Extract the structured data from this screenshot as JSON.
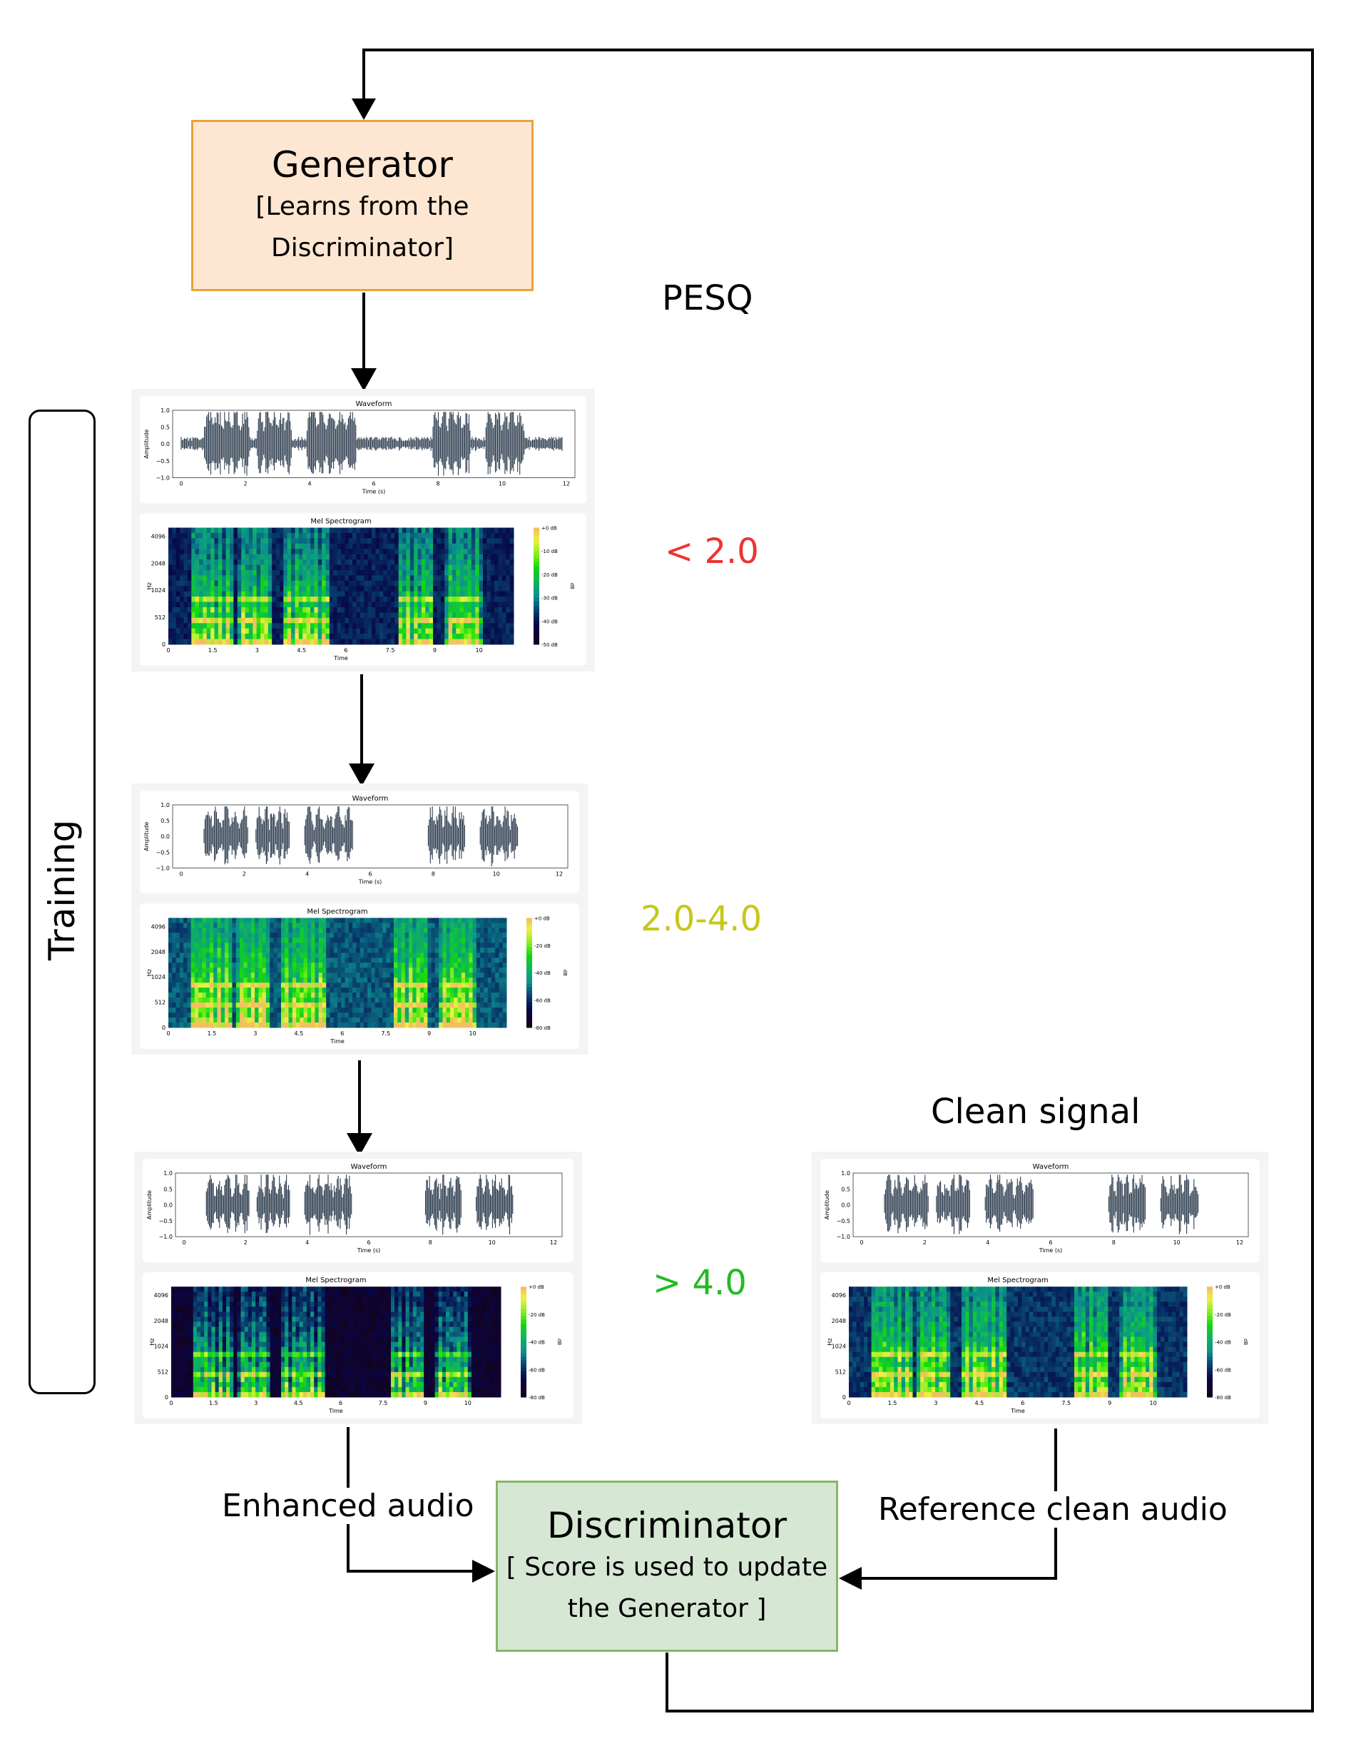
{
  "generator": {
    "title": "Generator",
    "subtitle_line1": "[Learns from the",
    "subtitle_line2": "Discriminator]"
  },
  "discriminator": {
    "title": "Discriminator",
    "subtitle_line1": "[ Score is used to update",
    "subtitle_line2": "the Generator ]"
  },
  "pesq_header": "PESQ",
  "training_label": "Training",
  "clean_signal_title": "Clean signal",
  "edges": {
    "enhanced": "Enhanced audio",
    "reference": "Reference clean audio"
  },
  "scores": [
    {
      "text": "< 2.0",
      "color": "#ee3333"
    },
    {
      "text": "2.0-4.0",
      "color": "#c7c71a"
    },
    {
      "text": "> 4.0",
      "color": "#22bb22"
    }
  ],
  "plot_text": {
    "waveform_title": "Waveform",
    "waveform_xlabel": "Time (s)",
    "waveform_ylabel": "Amplitude",
    "waveform_yticks": [
      "1.0",
      "0.5",
      "0.0",
      "−0.5",
      "−1.0"
    ],
    "waveform_xticks": [
      "0",
      "2",
      "4",
      "6",
      "8",
      "10",
      "12"
    ],
    "mel_title": "Mel Spectrogram",
    "mel_xlabel": "Time",
    "mel_ylabel": "Hz",
    "mel_yticks": [
      "4096",
      "2048",
      "1024",
      "512",
      "0"
    ],
    "mel_xticks": [
      "0",
      "1.5",
      "3",
      "4.5",
      "6",
      "7.5",
      "9",
      "10"
    ],
    "colorbar_label": "dB",
    "colorbar_ticks_50": [
      "+0 dB",
      "-10 dB",
      "-20 dB",
      "-30 dB",
      "-40 dB",
      "-50 dB"
    ],
    "colorbar_ticks_80": [
      "+0 dB",
      "-20 dB",
      "-40 dB",
      "-60 dB",
      "-80 dB"
    ]
  },
  "colors": {
    "generator_fill": "#fde6d2",
    "generator_border": "#e8a33a",
    "discriminator_fill": "#d6e8d4",
    "discriminator_border": "#87b668",
    "waveform": "#2e3d4f"
  }
}
